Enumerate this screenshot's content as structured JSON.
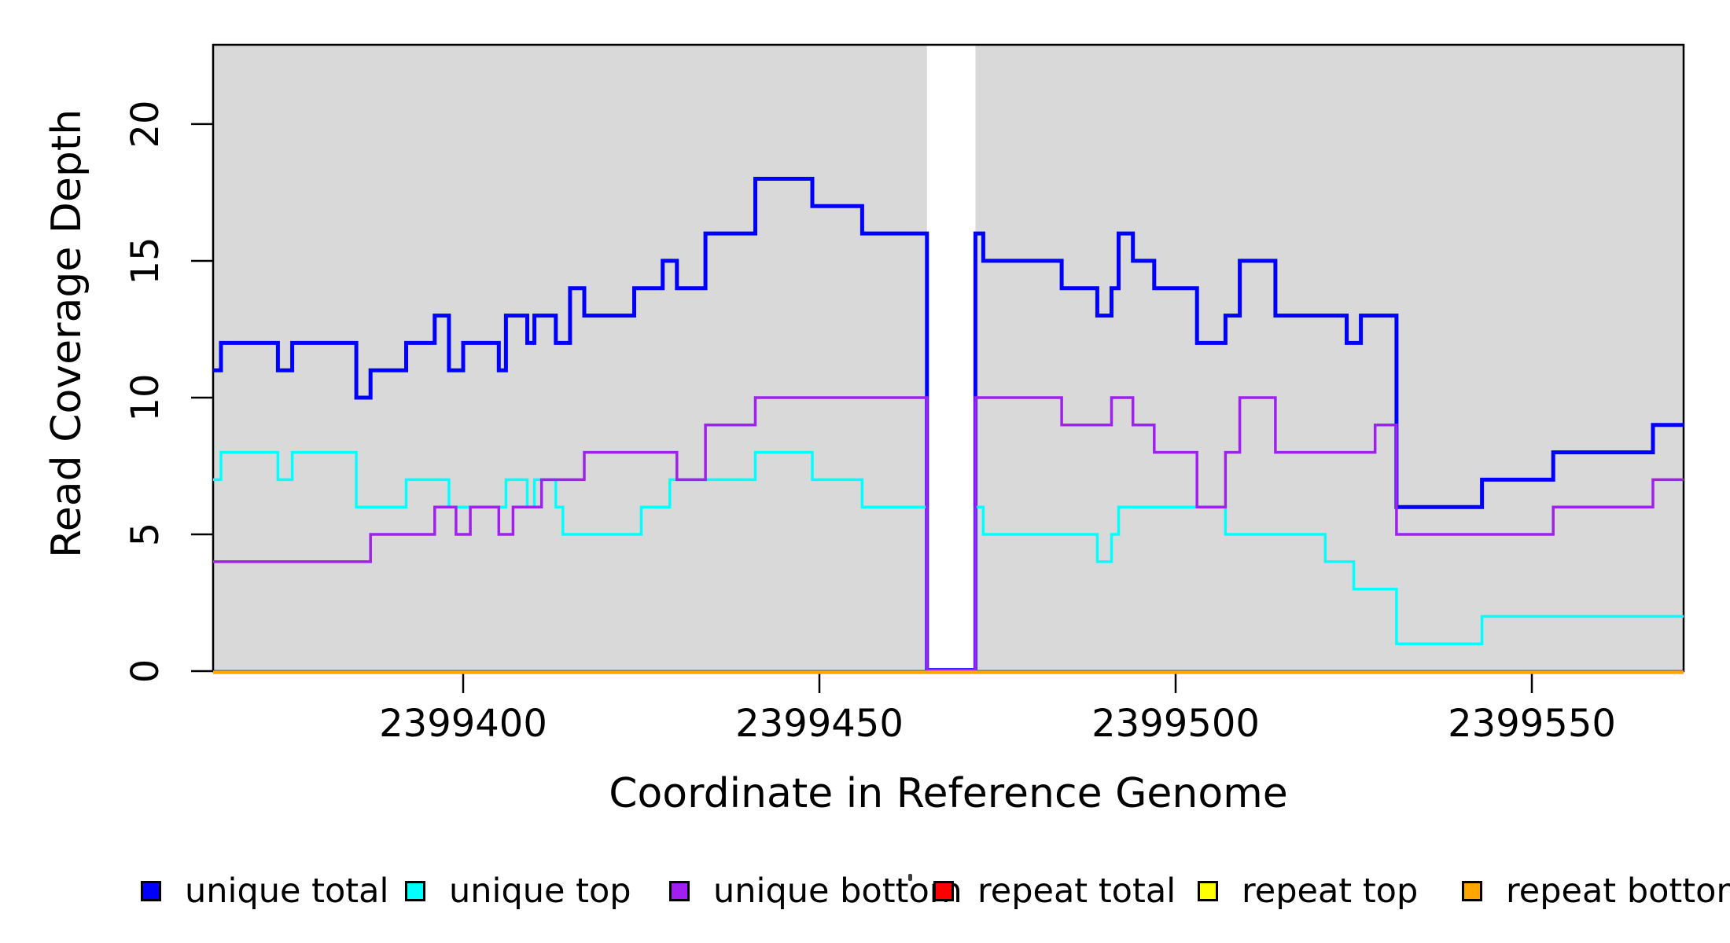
{
  "figure": {
    "background_color": "#FFFFFF",
    "plot_background_color": "#D9D9D9",
    "axis_color": "#000000"
  },
  "chart_data": {
    "type": "line",
    "subtype": "step-coverage",
    "title": "",
    "xlabel": "Coordinate in Reference Genome",
    "ylabel": "Read Coverage Depth",
    "xlim": [
      2399364.9,
      2399571.3
    ],
    "ylim": [
      0,
      22.9
    ],
    "x_ticks": [
      2399400,
      2399450,
      2399500,
      2399550
    ],
    "y_ticks": [
      0,
      5,
      10,
      15,
      20
    ],
    "grid": false,
    "legend_position": "bottom",
    "gap_region": {
      "x_start": 2399465.1,
      "x_end": 2399471.9,
      "fill": "#FFFFFF",
      "note": "all series drop to 0 inside this white column"
    },
    "series": [
      {
        "name": "unique total",
        "color": "#0000FF",
        "line_width": 5,
        "points": [
          [
            2399364.9,
            11
          ],
          [
            2399366,
            12
          ],
          [
            2399374,
            11
          ],
          [
            2399376,
            12
          ],
          [
            2399385,
            10
          ],
          [
            2399387,
            11
          ],
          [
            2399392,
            12
          ],
          [
            2399396,
            13
          ],
          [
            2399398,
            11
          ],
          [
            2399400,
            12
          ],
          [
            2399405,
            11
          ],
          [
            2399406,
            13
          ],
          [
            2399409,
            12
          ],
          [
            2399410,
            13
          ],
          [
            2399413,
            12
          ],
          [
            2399415,
            14
          ],
          [
            2399417,
            13
          ],
          [
            2399424,
            14
          ],
          [
            2399428,
            15
          ],
          [
            2399430,
            14
          ],
          [
            2399434,
            16
          ],
          [
            2399441,
            18
          ],
          [
            2399449,
            17
          ],
          [
            2399456,
            16
          ],
          [
            2399465.1,
            0
          ],
          [
            2399471.9,
            16
          ],
          [
            2399473,
            15
          ],
          [
            2399484,
            14
          ],
          [
            2399489,
            13
          ],
          [
            2399491,
            14
          ],
          [
            2399492,
            16
          ],
          [
            2399494,
            15
          ],
          [
            2399497,
            14
          ],
          [
            2399503,
            12
          ],
          [
            2399507,
            13
          ],
          [
            2399509,
            15
          ],
          [
            2399514,
            13
          ],
          [
            2399524,
            12
          ],
          [
            2399526,
            13
          ],
          [
            2399531,
            6
          ],
          [
            2399543,
            7
          ],
          [
            2399553,
            8
          ],
          [
            2399567,
            9
          ]
        ]
      },
      {
        "name": "unique top",
        "color": "#00FFFF",
        "line_width": 3.5,
        "points": [
          [
            2399364.9,
            7
          ],
          [
            2399366,
            8
          ],
          [
            2399374,
            7
          ],
          [
            2399376,
            8
          ],
          [
            2399385,
            6
          ],
          [
            2399392,
            7
          ],
          [
            2399398,
            6
          ],
          [
            2399406,
            7
          ],
          [
            2399409,
            6
          ],
          [
            2399410,
            7
          ],
          [
            2399413,
            6
          ],
          [
            2399414,
            5
          ],
          [
            2399425,
            6
          ],
          [
            2399429,
            7
          ],
          [
            2399441,
            8
          ],
          [
            2399449,
            7
          ],
          [
            2399456,
            6
          ],
          [
            2399465.1,
            0
          ],
          [
            2399471.9,
            6
          ],
          [
            2399473,
            5
          ],
          [
            2399489,
            4
          ],
          [
            2399491,
            5
          ],
          [
            2399492,
            6
          ],
          [
            2399507,
            5
          ],
          [
            2399521,
            4
          ],
          [
            2399525,
            3
          ],
          [
            2399531,
            1
          ],
          [
            2399543,
            2
          ]
        ]
      },
      {
        "name": "unique bottom",
        "color": "#A020F0",
        "line_width": 3.5,
        "points": [
          [
            2399364.9,
            4
          ],
          [
            2399387,
            5
          ],
          [
            2399396,
            6
          ],
          [
            2399399,
            5
          ],
          [
            2399401,
            6
          ],
          [
            2399405,
            5
          ],
          [
            2399407,
            6
          ],
          [
            2399411,
            7
          ],
          [
            2399417,
            8
          ],
          [
            2399430,
            7
          ],
          [
            2399434,
            9
          ],
          [
            2399441,
            10
          ],
          [
            2399465.1,
            0
          ],
          [
            2399471.9,
            10
          ],
          [
            2399484,
            9
          ],
          [
            2399491,
            10
          ],
          [
            2399494,
            9
          ],
          [
            2399497,
            8
          ],
          [
            2399503,
            6
          ],
          [
            2399507,
            8
          ],
          [
            2399509,
            10
          ],
          [
            2399514,
            8
          ],
          [
            2399528,
            9
          ],
          [
            2399531,
            5
          ],
          [
            2399553,
            6
          ],
          [
            2399567,
            7
          ]
        ]
      },
      {
        "name": "repeat total",
        "color": "#FF0000",
        "line_width": 4,
        "points": [
          [
            2399364.9,
            0
          ]
        ]
      },
      {
        "name": "repeat top",
        "color": "#FFFF00",
        "line_width": 4,
        "points": [
          [
            2399364.9,
            0
          ]
        ]
      },
      {
        "name": "repeat bottom",
        "color": "#FFA500",
        "line_width": 4.5,
        "points": [
          [
            2399364.9,
            0
          ]
        ]
      }
    ]
  },
  "legend": {
    "items": [
      {
        "label": "unique total",
        "color": "#0000FF"
      },
      {
        "label": "unique top",
        "color": "#00FFFF"
      },
      {
        "label": "unique bottom",
        "color": "#A020F0"
      },
      {
        "label": "repeat total",
        "color": "#FF0000"
      },
      {
        "label": "repeat top",
        "color": "#FFFF00"
      },
      {
        "label": "repeat bottom",
        "color": "#FFA500"
      }
    ]
  }
}
